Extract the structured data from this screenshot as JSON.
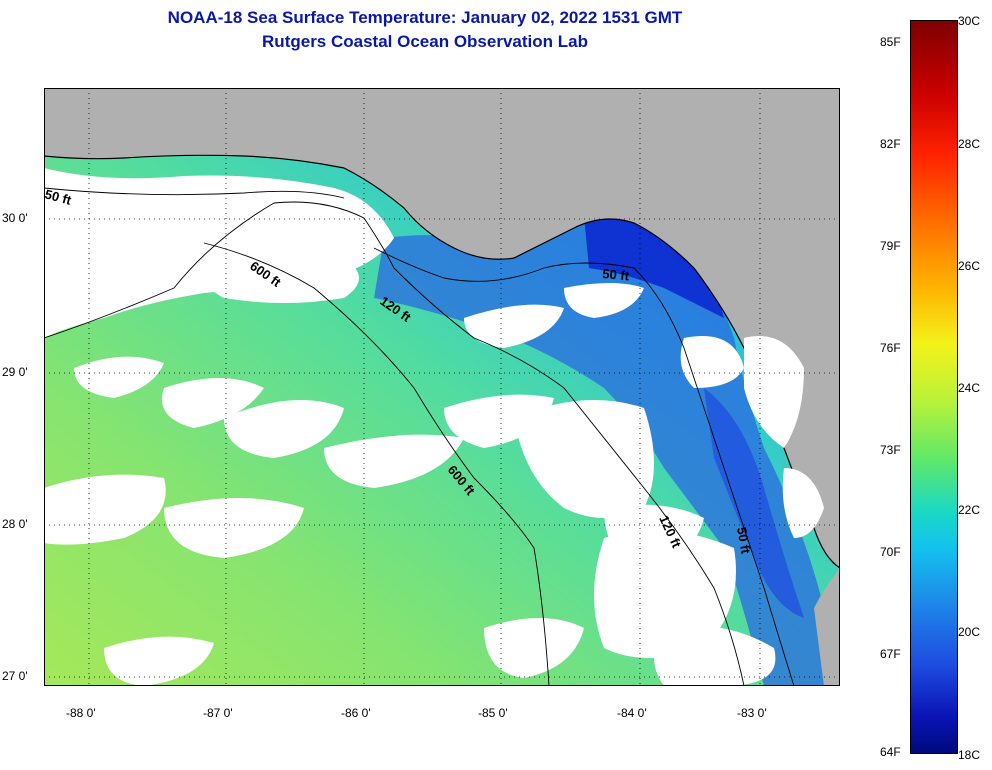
{
  "title": {
    "line1": "NOAA-18 Sea Surface Temperature:  January 02, 2022 1531 GMT",
    "line2": "Rutgers Coastal Ocean Observation Lab"
  },
  "colors": {
    "title": "#0a18a8",
    "land": "#b0b0b0",
    "cloud": "#ffffff",
    "coastline": "#000000"
  },
  "map": {
    "lat_labels": [
      "30 0'",
      "29 0'",
      "28 0'",
      "27 0'"
    ],
    "lon_labels": [
      "-88 0'",
      "-87 0'",
      "-86 0'",
      "-85 0'",
      "-84 0'",
      "-83 0'"
    ],
    "contour_labels": [
      "50 ft",
      "600 ft",
      "120 ft",
      "50 ft",
      "600 ft",
      "120 ft",
      "50 ft"
    ]
  },
  "colorbar": {
    "fahrenheit": [
      "85F",
      "82F",
      "79F",
      "76F",
      "73F",
      "70F",
      "67F",
      "64F"
    ],
    "celsius": [
      "30C",
      "28C",
      "26C",
      "24C",
      "22C",
      "20C",
      "18C"
    ]
  }
}
